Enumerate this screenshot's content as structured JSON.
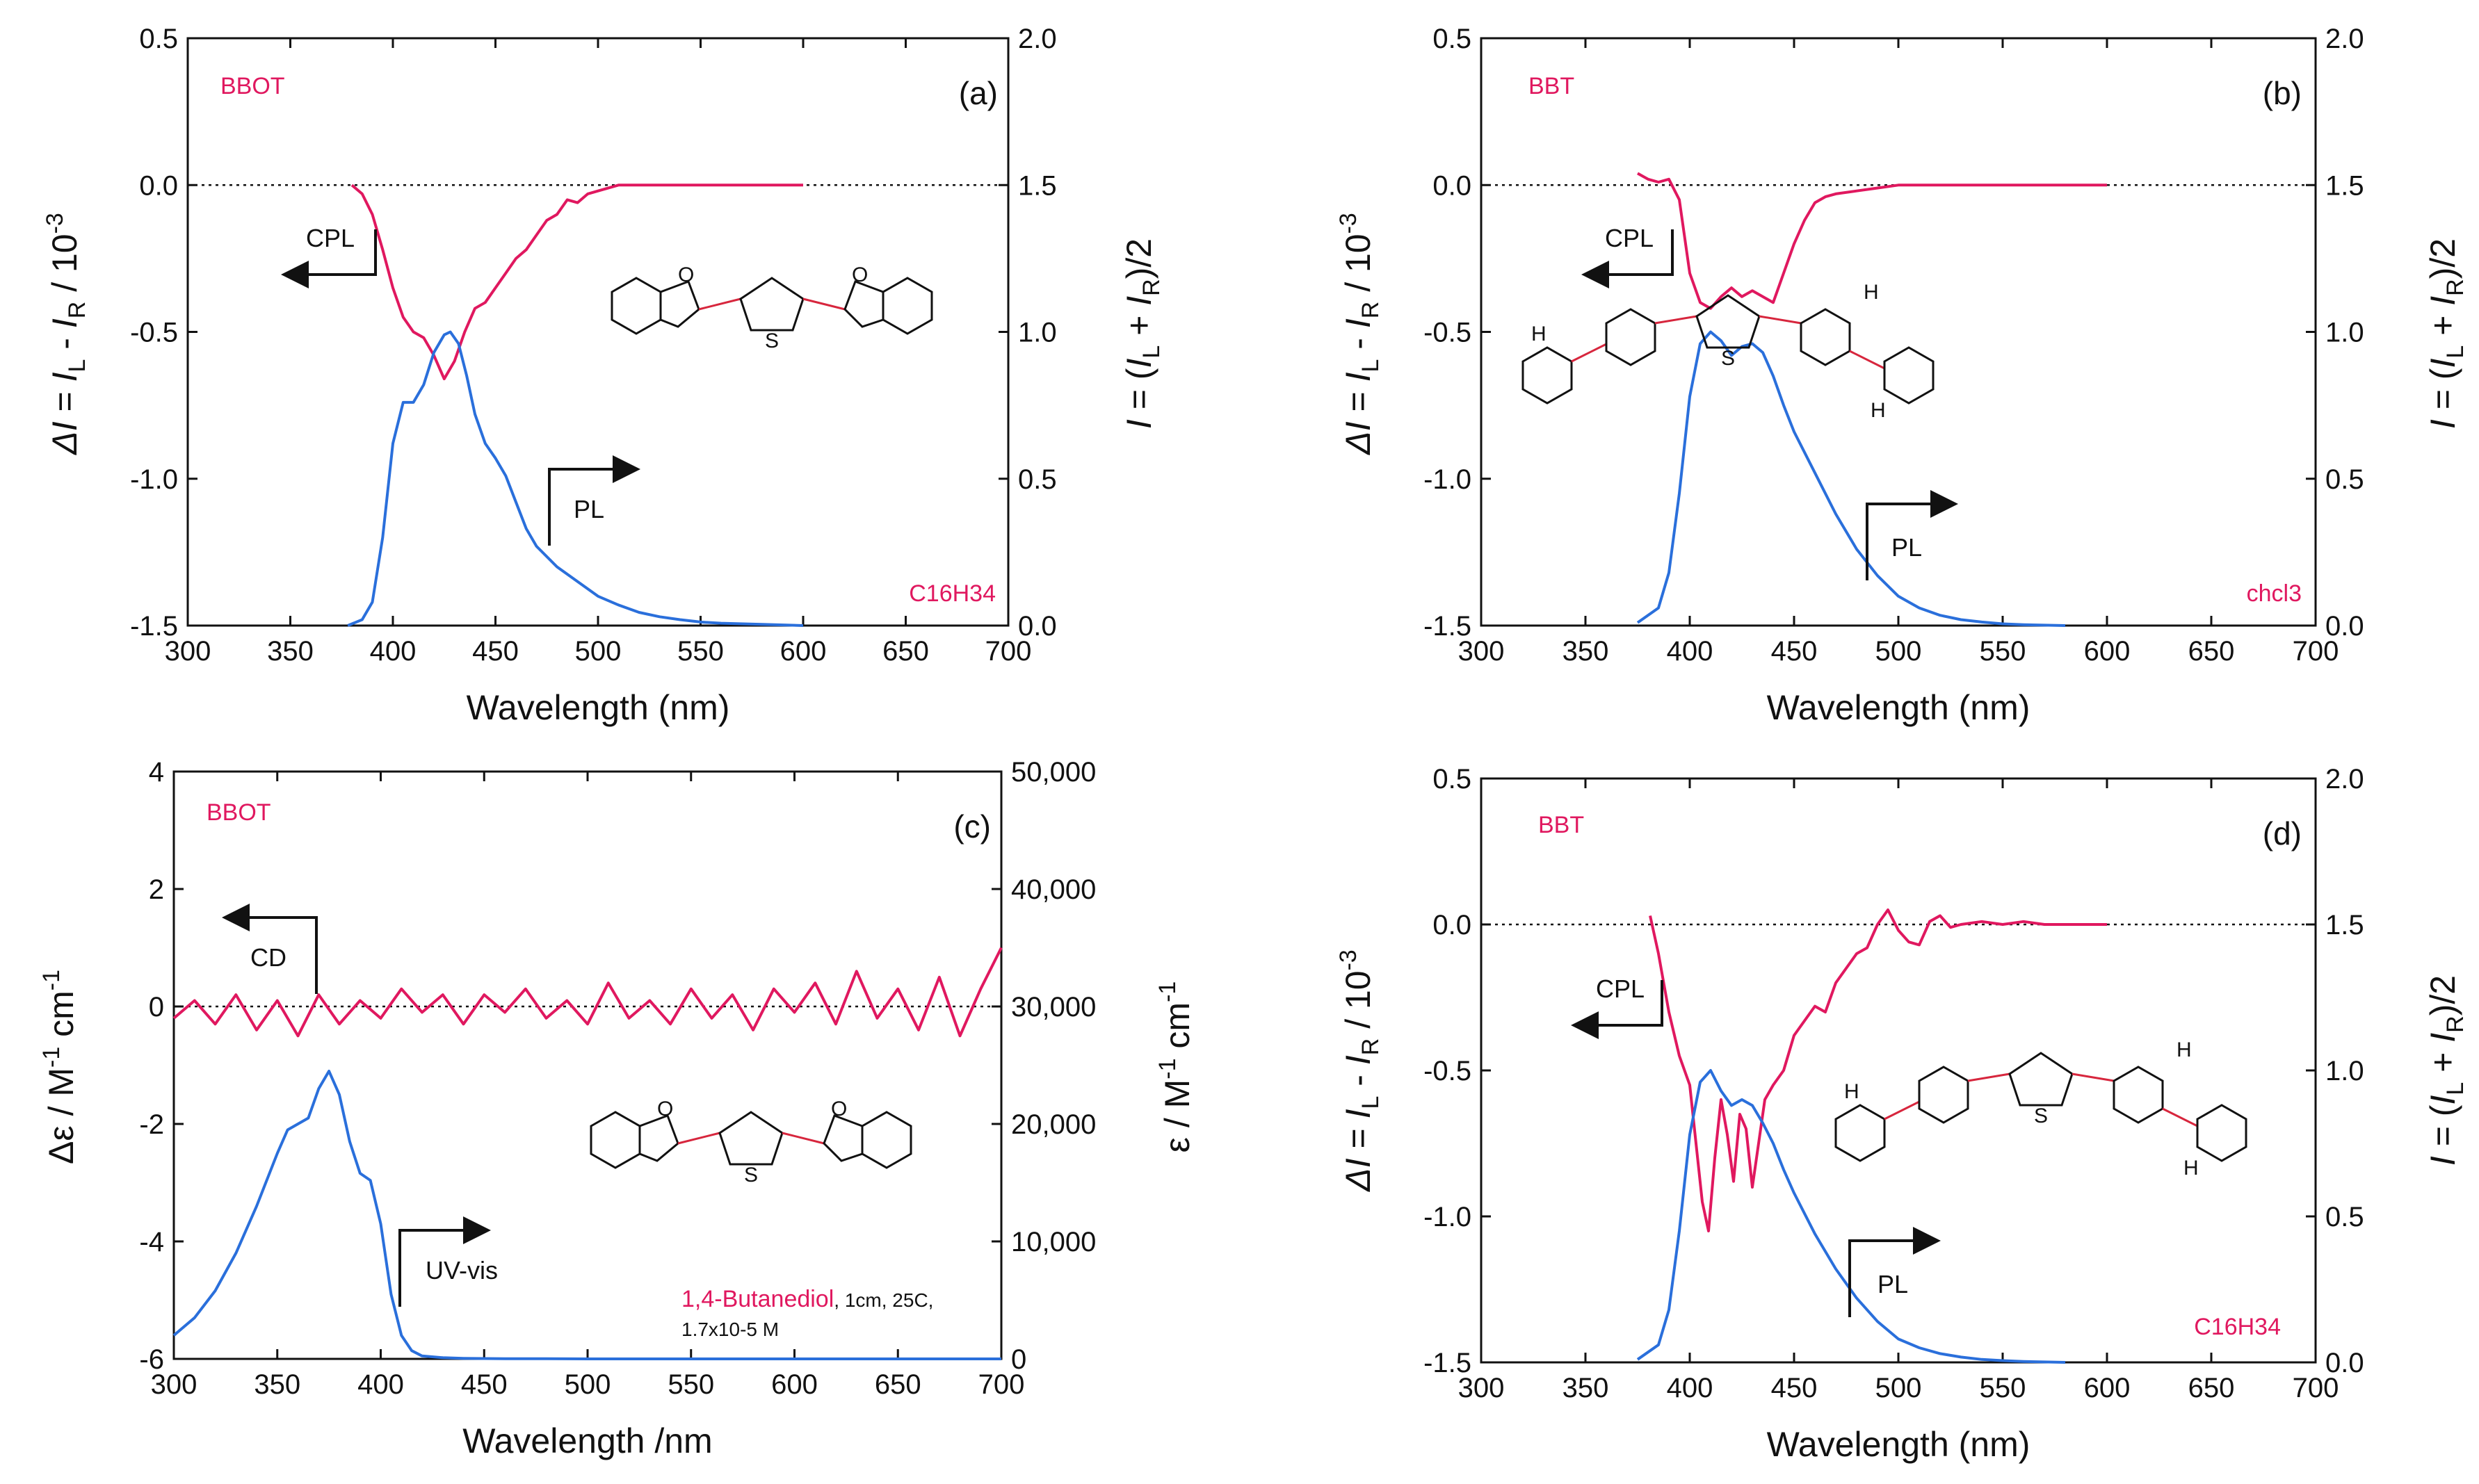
{
  "colors": {
    "magenta": "#e0185f",
    "blue": "#2a6fdb",
    "axis": "#111111",
    "bond_red": "#d7263d"
  },
  "chart_data": [
    {
      "type": "line",
      "panel_label": "(a)",
      "compound": "BBOT",
      "solvent": "C16H34",
      "xlabel": "Wavelength (nm)",
      "xlim": [
        300,
        700
      ],
      "xticks": [
        300,
        350,
        400,
        450,
        500,
        550,
        600,
        650,
        700
      ],
      "ylabel_left": "ΔI = IL - IR / 10-3",
      "ylim_left": [
        -1.5,
        0.5
      ],
      "yticks_left": [
        "0.5",
        "0.0",
        "-0.5",
        "-1.0",
        "-1.5"
      ],
      "ylabel_right": "I = (IL + IR)/2",
      "ylim_right": [
        0.0,
        2.0
      ],
      "yticks_right": [
        "2.0",
        "1.5",
        "1.0",
        "0.5",
        "0.0"
      ],
      "dashed_zero_left": true,
      "series": [
        {
          "name": "CPL",
          "axis": "left",
          "x": [
            380,
            385,
            390,
            395,
            400,
            405,
            410,
            415,
            420,
            425,
            430,
            435,
            440,
            445,
            450,
            455,
            460,
            465,
            470,
            475,
            480,
            485,
            490,
            495,
            500,
            510,
            520,
            530,
            540,
            550,
            560,
            570,
            580,
            590,
            600
          ],
          "y": [
            0.0,
            -0.03,
            -0.1,
            -0.22,
            -0.35,
            -0.45,
            -0.5,
            -0.52,
            -0.58,
            -0.66,
            -0.6,
            -0.5,
            -0.42,
            -0.4,
            -0.35,
            -0.3,
            -0.25,
            -0.22,
            -0.17,
            -0.12,
            -0.1,
            -0.05,
            -0.06,
            -0.03,
            -0.02,
            0.0,
            0.0,
            0.0,
            0.0,
            0.0,
            0.0,
            0.0,
            0.0,
            0.0,
            0.0
          ]
        },
        {
          "name": "PL",
          "axis": "right",
          "x": [
            378,
            385,
            390,
            395,
            400,
            405,
            410,
            415,
            420,
            425,
            428,
            432,
            436,
            440,
            445,
            450,
            455,
            460,
            465,
            470,
            480,
            490,
            500,
            510,
            520,
            530,
            540,
            550,
            560,
            580,
            600
          ],
          "y": [
            0.0,
            0.02,
            0.08,
            0.3,
            0.62,
            0.76,
            0.76,
            0.82,
            0.93,
            0.99,
            1.0,
            0.96,
            0.85,
            0.72,
            0.62,
            0.57,
            0.51,
            0.42,
            0.33,
            0.27,
            0.2,
            0.15,
            0.1,
            0.07,
            0.045,
            0.03,
            0.02,
            0.012,
            0.008,
            0.004,
            0.0
          ]
        }
      ]
    },
    {
      "type": "line",
      "panel_label": "(b)",
      "compound": "BBT",
      "solvent": "chcl3",
      "xlabel": "Wavelength (nm)",
      "xlim": [
        300,
        700
      ],
      "xticks": [
        300,
        350,
        400,
        450,
        500,
        550,
        600,
        650,
        700
      ],
      "ylabel_left": "ΔI = IL - IR / 10-3",
      "ylim_left": [
        -1.5,
        0.5
      ],
      "yticks_left": [
        "0.5",
        "0.0",
        "-0.5",
        "-1.0",
        "-1.5"
      ],
      "ylabel_right": "I = (IL + IR)/2",
      "ylim_right": [
        0.0,
        2.0
      ],
      "yticks_right": [
        "2.0",
        "1.5",
        "1.0",
        "0.5",
        "0.0"
      ],
      "dashed_zero_left": true,
      "series": [
        {
          "name": "CPL",
          "axis": "left",
          "x": [
            375,
            380,
            385,
            390,
            395,
            400,
            405,
            410,
            415,
            420,
            425,
            430,
            435,
            440,
            445,
            450,
            455,
            460,
            465,
            470,
            480,
            490,
            500,
            520,
            540,
            560,
            580,
            600
          ],
          "y": [
            0.04,
            0.02,
            0.01,
            0.02,
            -0.05,
            -0.3,
            -0.4,
            -0.42,
            -0.38,
            -0.35,
            -0.38,
            -0.36,
            -0.38,
            -0.4,
            -0.3,
            -0.2,
            -0.12,
            -0.06,
            -0.04,
            -0.03,
            -0.02,
            -0.01,
            0.0,
            0.0,
            0.0,
            0.0,
            0.0,
            0.0
          ]
        },
        {
          "name": "PL",
          "axis": "right",
          "x": [
            375,
            385,
            390,
            395,
            400,
            405,
            410,
            415,
            420,
            425,
            430,
            435,
            440,
            445,
            450,
            460,
            470,
            480,
            490,
            500,
            510,
            520,
            530,
            540,
            550,
            560,
            580
          ],
          "y": [
            0.01,
            0.06,
            0.18,
            0.45,
            0.78,
            0.96,
            1.0,
            0.97,
            0.92,
            0.95,
            0.96,
            0.93,
            0.85,
            0.75,
            0.66,
            0.52,
            0.38,
            0.26,
            0.17,
            0.1,
            0.06,
            0.035,
            0.02,
            0.012,
            0.006,
            0.003,
            0.0
          ]
        }
      ]
    },
    {
      "type": "line",
      "panel_label": "(c)",
      "compound": "BBOT",
      "solvent": "1,4-Butanediol",
      "conditions_line1": ", 1cm, 25C,",
      "conditions_line2": "1.7x10-5 M",
      "xlabel": "Wavelength /nm",
      "xlim": [
        300,
        700
      ],
      "xticks": [
        300,
        350,
        400,
        450,
        500,
        550,
        600,
        650,
        700
      ],
      "ylabel_left": "Δε / M-1 cm-1",
      "ylim_left": [
        -6,
        4
      ],
      "yticks_left": [
        "4",
        "2",
        "0",
        "-2",
        "-4",
        "-6"
      ],
      "ylabel_right": "ε / M-1 cm-1",
      "ylim_right": [
        0,
        50000
      ],
      "yticks_right": [
        "50,000",
        "40,000",
        "30,000",
        "20,000",
        "10,000",
        "0"
      ],
      "dashed_zero_left": true,
      "series": [
        {
          "name": "CD",
          "axis": "left",
          "x": [
            300,
            310,
            320,
            330,
            340,
            350,
            360,
            370,
            380,
            390,
            400,
            410,
            420,
            430,
            440,
            450,
            460,
            470,
            480,
            490,
            500,
            510,
            520,
            530,
            540,
            550,
            560,
            570,
            580,
            590,
            600,
            610,
            620,
            630,
            640,
            650,
            660,
            670,
            680,
            690,
            700
          ],
          "y": [
            -0.2,
            0.1,
            -0.3,
            0.2,
            -0.4,
            0.1,
            -0.5,
            0.2,
            -0.3,
            0.1,
            -0.2,
            0.3,
            -0.1,
            0.2,
            -0.3,
            0.2,
            -0.1,
            0.3,
            -0.2,
            0.1,
            -0.3,
            0.4,
            -0.2,
            0.1,
            -0.3,
            0.3,
            -0.2,
            0.2,
            -0.4,
            0.3,
            -0.1,
            0.4,
            -0.3,
            0.6,
            -0.2,
            0.3,
            -0.4,
            0.5,
            -0.5,
            0.3,
            1.0
          ]
        },
        {
          "name": "UV-vis",
          "axis": "right",
          "x": [
            300,
            310,
            320,
            330,
            340,
            350,
            355,
            360,
            365,
            370,
            375,
            380,
            385,
            390,
            395,
            400,
            405,
            410,
            415,
            420,
            430,
            440,
            460,
            480,
            500,
            550,
            600,
            650,
            700
          ],
          "y": [
            2000,
            3500,
            5800,
            9000,
            13000,
            17500,
            19500,
            20000,
            20500,
            23000,
            24500,
            22500,
            18500,
            15800,
            15200,
            11500,
            5500,
            2000,
            700,
            250,
            100,
            50,
            20,
            10,
            0,
            0,
            0,
            0,
            0
          ]
        }
      ]
    },
    {
      "type": "line",
      "panel_label": "(d)",
      "compound": "BBT",
      "solvent": "C16H34",
      "xlabel": "Wavelength (nm)",
      "xlim": [
        300,
        700
      ],
      "xticks": [
        300,
        350,
        400,
        450,
        500,
        550,
        600,
        650,
        700
      ],
      "ylabel_left": "ΔI = IL - IR / 10-3",
      "ylim_left": [
        -1.5,
        0.5
      ],
      "yticks_left": [
        "0.5",
        "0.0",
        "-0.5",
        "-1.0",
        "-1.5"
      ],
      "ylabel_right": "I = (IL + IR)/2",
      "ylim_right": [
        0.0,
        2.0
      ],
      "yticks_right": [
        "2.0",
        "1.5",
        "1.0",
        "0.5",
        "0.0"
      ],
      "dashed_zero_left": true,
      "series": [
        {
          "name": "CPL",
          "axis": "left",
          "x": [
            381,
            385,
            390,
            395,
            400,
            403,
            406,
            409,
            412,
            415,
            418,
            421,
            424,
            427,
            430,
            433,
            436,
            440,
            445,
            450,
            455,
            460,
            465,
            470,
            475,
            480,
            485,
            490,
            495,
            500,
            505,
            510,
            515,
            520,
            525,
            530,
            540,
            550,
            560,
            570,
            580,
            590,
            600
          ],
          "y": [
            0.03,
            -0.1,
            -0.3,
            -0.45,
            -0.55,
            -0.75,
            -0.95,
            -1.05,
            -0.8,
            -0.6,
            -0.72,
            -0.88,
            -0.65,
            -0.7,
            -0.9,
            -0.75,
            -0.6,
            -0.55,
            -0.5,
            -0.38,
            -0.33,
            -0.28,
            -0.3,
            -0.2,
            -0.15,
            -0.1,
            -0.08,
            0.0,
            0.05,
            -0.02,
            -0.06,
            -0.07,
            0.01,
            0.03,
            -0.01,
            0.0,
            0.01,
            0.0,
            0.01,
            0.0,
            0.0,
            0.0,
            0.0
          ]
        },
        {
          "name": "PL",
          "axis": "right",
          "x": [
            375,
            385,
            390,
            395,
            400,
            405,
            410,
            415,
            420,
            425,
            430,
            435,
            440,
            445,
            450,
            460,
            470,
            480,
            490,
            500,
            510,
            520,
            530,
            540,
            550,
            560,
            580
          ],
          "y": [
            0.01,
            0.06,
            0.18,
            0.45,
            0.78,
            0.96,
            1.0,
            0.93,
            0.88,
            0.9,
            0.88,
            0.82,
            0.75,
            0.66,
            0.58,
            0.44,
            0.32,
            0.22,
            0.14,
            0.08,
            0.05,
            0.03,
            0.018,
            0.01,
            0.006,
            0.003,
            0.0
          ]
        }
      ]
    }
  ]
}
